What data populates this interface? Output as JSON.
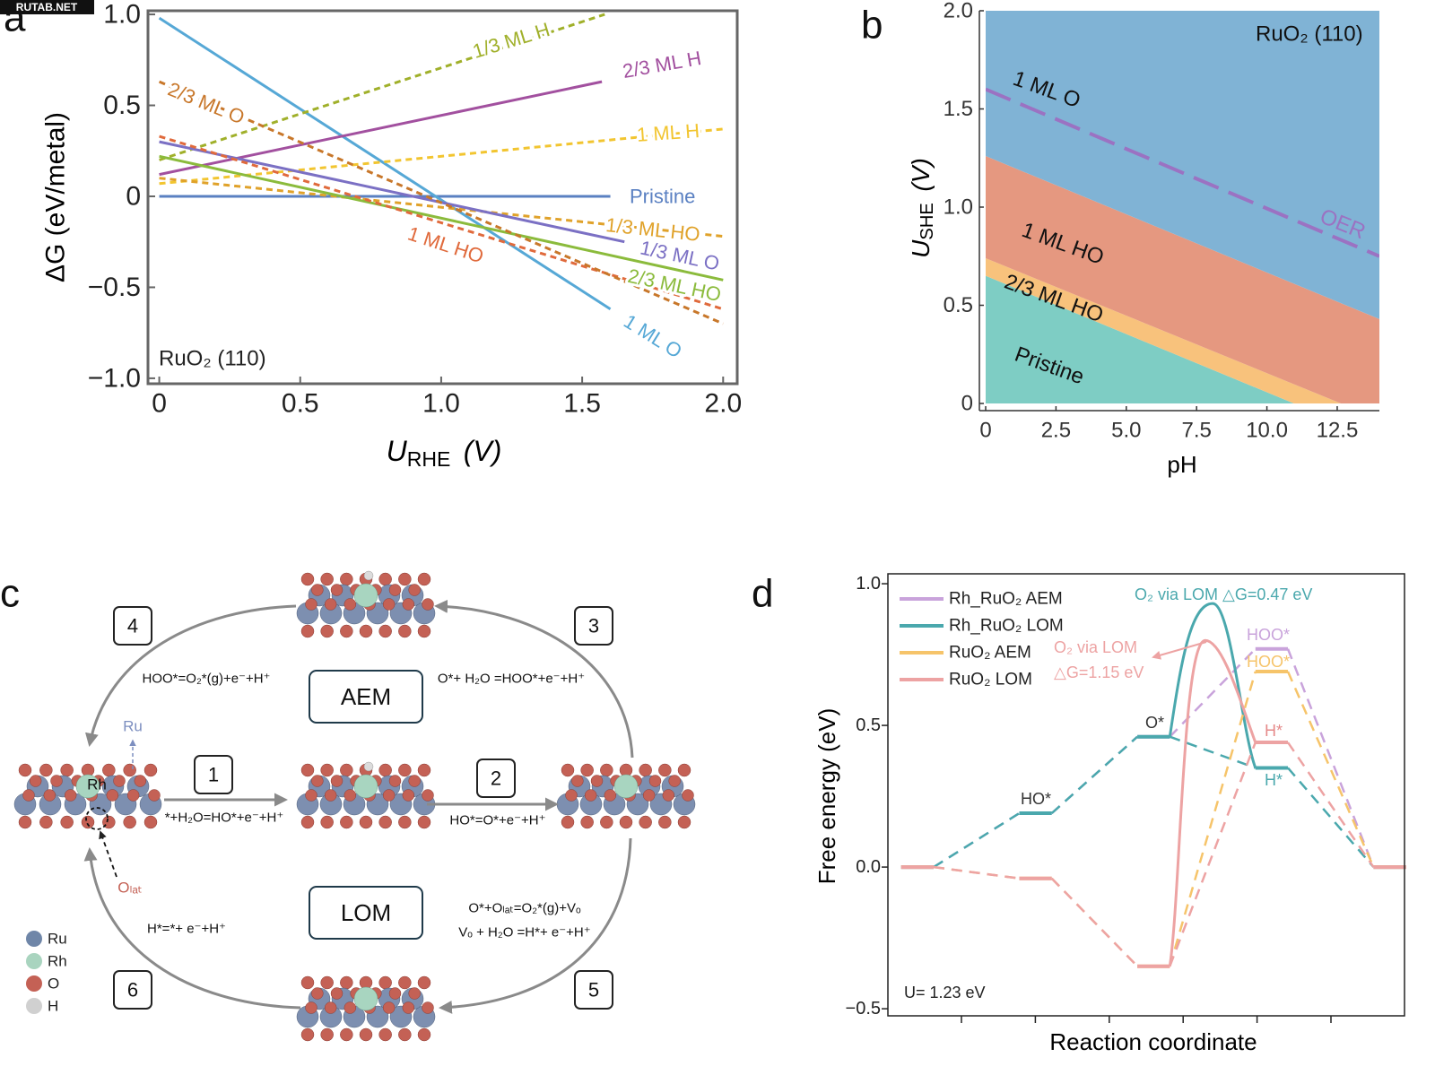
{
  "watermark": "RUTAB.NET",
  "chart_data": [
    {
      "type": "line",
      "label": "a",
      "xlabel": {
        "main": "U",
        "sub": "RHE",
        "unit": "(V)"
      },
      "ylabel": "ΔG (eV/metal)",
      "annotation": "RuO₂ (110)",
      "xlim": [
        -0.04,
        2.05
      ],
      "ylim": [
        -1.03,
        1.02
      ],
      "xticks": [
        0,
        0.5,
        {
          "value": 1,
          "label": "1.0"
        },
        1.5,
        {
          "value": 2,
          "label": "2.0"
        }
      ],
      "yticks": [
        {
          "value": -1,
          "label": "−1.0"
        },
        {
          "value": -0.5,
          "label": "−0.5"
        },
        0,
        0.5,
        {
          "value": 1,
          "label": "1.0"
        }
      ],
      "series": [
        {
          "name": "Pristine",
          "color": "#5a80c2",
          "dashed": false,
          "x": [
            0,
            1.6
          ],
          "values": [
            0,
            0
          ]
        },
        {
          "name": "1 ML O",
          "color": "#56a8d6",
          "dashed": false,
          "x": [
            0,
            1.6
          ],
          "values": [
            0.98,
            -0.62
          ]
        },
        {
          "name": "1/3 ML H",
          "color": "#a0b02a",
          "dashed": true,
          "x": [
            0,
            1.58
          ],
          "values": [
            0.2,
            1.0
          ]
        },
        {
          "name": "2/3 ML H",
          "color": "#a2509f",
          "dashed": false,
          "x": [
            0,
            1.57
          ],
          "values": [
            0.12,
            0.63
          ]
        },
        {
          "name": "1 ML H",
          "color": "#f2c530",
          "dashed": true,
          "x": [
            0,
            2
          ],
          "values": [
            0.07,
            0.37
          ]
        },
        {
          "name": "1/3 ML HO",
          "color": "#e0a22a",
          "dashed": true,
          "x": [
            0,
            2
          ],
          "values": [
            0.1,
            -0.22
          ]
        },
        {
          "name": "1/3 ML O",
          "color": "#7b70c4",
          "dashed": false,
          "x": [
            0,
            1.65
          ],
          "values": [
            0.3,
            -0.25
          ]
        },
        {
          "name": "2/3 ML HO",
          "color": "#8bbb3c",
          "dashed": false,
          "x": [
            0,
            2
          ],
          "values": [
            0.22,
            -0.46
          ]
        },
        {
          "name": "1 ML HO",
          "color": "#e06a3c",
          "dashed": true,
          "x": [
            0,
            2
          ],
          "values": [
            0.33,
            -0.62
          ]
        },
        {
          "name": "2/3 ML O",
          "color": "#c8772a",
          "dashed": true,
          "x": [
            0,
            2
          ],
          "values": [
            0.63,
            -0.7
          ]
        }
      ]
    },
    {
      "type": "area",
      "label": "b",
      "xlabel": "pH",
      "ylabel": {
        "main": "U",
        "sub": "SHE",
        "unit": "(V)"
      },
      "annotation": "RuO₂ (110)",
      "xlim": [
        0,
        14
      ],
      "ylim": [
        0,
        2
      ],
      "xticks": [
        0,
        2.5,
        {
          "value": 5,
          "label": "5.0"
        },
        7.5,
        {
          "value": 10,
          "label": "10.0"
        },
        12.5
      ],
      "yticks": [
        0,
        0.5,
        {
          "value": 1,
          "label": "1.0"
        },
        1.5,
        {
          "value": 2,
          "label": "2.0"
        }
      ],
      "x": [
        0,
        14
      ],
      "regions": [
        {
          "name": "Pristine",
          "color": "#7ecdc4",
          "upper": [
            0.65,
            -0.18
          ]
        },
        {
          "name": "2/3 ML HO",
          "color": "#f8c27c",
          "upper": [
            0.74,
            -0.08
          ]
        },
        {
          "name": "1 ML HO",
          "color": "#e59880",
          "upper": [
            1.26,
            0.43
          ]
        },
        {
          "name": "1 ML O",
          "color": "#80b3d5"
        }
      ],
      "oer": {
        "name": "OER",
        "color": "#9b72c2",
        "values": [
          1.6,
          0.75
        ]
      }
    },
    {
      "type": "step",
      "label": "d",
      "xlabel": "Reaction coordinate",
      "ylabel": "Free energy (eV)",
      "xlim": [
        0,
        7
      ],
      "ylim": [
        -0.525,
        1.035
      ],
      "yticks": [
        {
          "value": -0.5,
          "label": "−0.5"
        },
        {
          "value": 0,
          "label": "0.0"
        },
        0.5,
        {
          "value": 1,
          "label": "1.0"
        }
      ],
      "legend": "upper left",
      "series": [
        {
          "name": "Rh_RuO₂ AEM",
          "color": "#c9a3db",
          "x": [
            0.4,
            2,
            3.6,
            5.2,
            6.8
          ],
          "values": [
            0,
            0.19,
            0.46,
            0.77,
            0
          ]
        },
        {
          "name": "Rh_RuO₂ LOM",
          "color": "#4aa8ad",
          "x": [
            0.4,
            2,
            3.6,
            5.2,
            6.8
          ],
          "values": [
            0,
            0.19,
            0.46,
            0.35,
            0
          ],
          "peak": {
            "x": 4.4,
            "value": 0.93
          }
        },
        {
          "name": "RuO₂ AEM",
          "color": "#f6c46a",
          "x": [
            0.4,
            2,
            3.6,
            5.2,
            6.8
          ],
          "values": [
            0,
            -0.04,
            -0.35,
            0.69,
            0
          ]
        },
        {
          "name": "RuO₂ LOM",
          "color": "#eda3a3",
          "x": [
            0.4,
            2,
            3.6,
            5.2,
            6.8
          ],
          "values": [
            0,
            -0.04,
            -0.35,
            0.44,
            0
          ],
          "peak": {
            "x": 4.3,
            "value": 0.8
          }
        }
      ],
      "annotations": [
        {
          "text": "O₂ via LOM  △G=0.47 eV",
          "color": "#4aa8ad"
        },
        {
          "text": "O₂ via LOM",
          "color": "#eda3a3"
        },
        {
          "text": "△G=1.15 eV",
          "color": "#eda3a3"
        },
        {
          "text": "HOO*",
          "color": "#c9a3db"
        },
        {
          "text": "HOO*",
          "color": "#f6c46a"
        },
        {
          "text": "H*",
          "color": "#e58a8a"
        },
        {
          "text": "H*",
          "color": "#4aa8ad"
        },
        {
          "text": "HO*",
          "color": "#333333"
        },
        {
          "text": "O*",
          "color": "#333333"
        },
        {
          "text": "U= 1.23 eV",
          "color": "#222222"
        }
      ]
    }
  ],
  "diagram": {
    "label": "c",
    "mechanisms": [
      "AEM",
      "LOM"
    ],
    "steps": [
      {
        "number": "1",
        "equations": [
          "*+H₂O=HO*+e⁻+H⁺"
        ]
      },
      {
        "number": "2",
        "equations": [
          "HO*=O*+e⁻+H⁺"
        ]
      },
      {
        "number": "3",
        "equations": [
          "O*+ H₂O =HOO*+e⁻+H⁺"
        ]
      },
      {
        "number": "4",
        "equations": [
          "HOO*=O₂*(g)+e⁻+H⁺"
        ]
      },
      {
        "number": "5",
        "equations": [
          "O*+Oₗₐₜ=O₂*(g)+Vₒ",
          "Vₒ + H₂O =H*+ e⁻+H⁺"
        ]
      },
      {
        "number": "6",
        "equations": [
          "H*=*+ e⁻+H⁺"
        ]
      }
    ],
    "site_labels": {
      "ru": "Ru",
      "rh": "Rh",
      "olat": "Oₗₐₜ"
    },
    "legend": [
      {
        "name": "Ru",
        "color": "#6f86a8"
      },
      {
        "name": "Rh",
        "color": "#a9d4bf"
      },
      {
        "name": "O",
        "color": "#c46155"
      },
      {
        "name": "H",
        "color": "#d0d0d0"
      }
    ]
  }
}
